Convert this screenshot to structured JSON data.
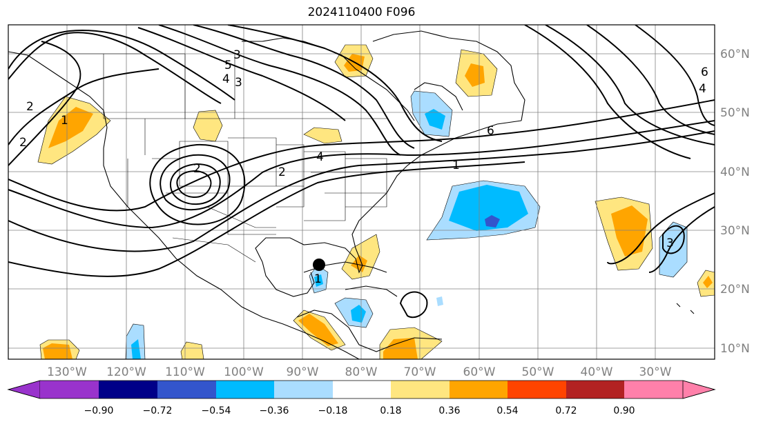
{
  "title": "2024110400 F096",
  "lon_labels": [
    "130°W",
    "120°W",
    "110°W",
    "100°W",
    "90°W",
    "80°W",
    "70°W",
    "60°W",
    "50°W",
    "40°W",
    "30°W"
  ],
  "lat_labels": [
    "60°N",
    "50°N",
    "40°N",
    "30°N",
    "20°N",
    "10°N"
  ],
  "colorbar": {
    "ticks": [
      "−0.90",
      "−0.72",
      "−0.54",
      "−0.36",
      "−0.18",
      "0.18",
      "0.36",
      "0.54",
      "0.72",
      "0.90"
    ],
    "colors": [
      "#9933cc",
      "#000088",
      "#3355cc",
      "#00bbff",
      "#aaddff",
      "#ffffff",
      "#ffe680",
      "#ffa500",
      "#ff4400",
      "#b22222",
      "#ff80aa"
    ]
  },
  "contour_labels": [
    "2",
    "1",
    "2",
    "3",
    "2",
    "1",
    "6",
    "4",
    "5",
    "4",
    "3",
    "2",
    "1",
    "6",
    "4",
    "3"
  ],
  "marker": {
    "name": "storm-center",
    "lon": -87.5,
    "lat": 24.5
  },
  "colors": {
    "grid": "#808080",
    "warm_light": "#ffe680",
    "warm_mid": "#ffa500",
    "warm_strong": "#ff4400",
    "cool_light": "#aaddff",
    "cool_mid": "#00bbff",
    "cool_strong": "#3355cc"
  }
}
